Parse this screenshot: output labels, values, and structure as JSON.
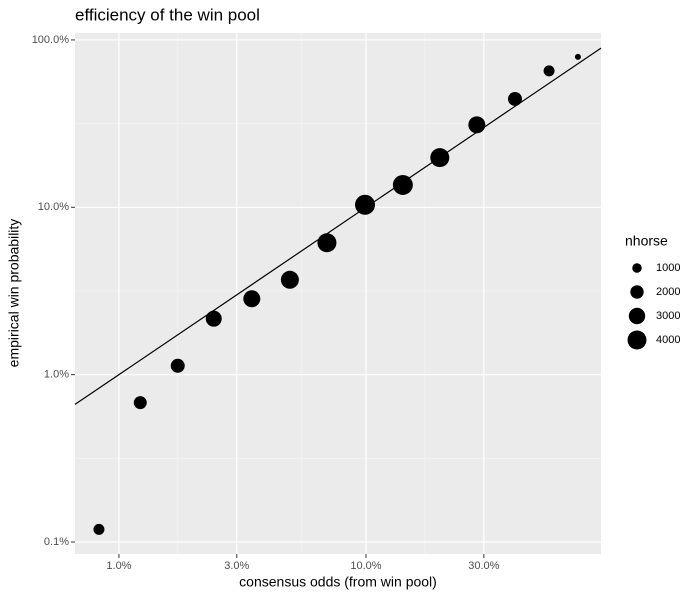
{
  "chart_data": {
    "type": "scatter",
    "title": "efficiency of the win pool",
    "x_label": "consensus odds (from win pool)",
    "y_label": "empirical win probability",
    "x": [
      0.83,
      1.22,
      1.73,
      2.42,
      3.45,
      4.92,
      6.95,
      9.91,
      14.1,
      19.9,
      28.1,
      40.1,
      55.1,
      72.1
    ],
    "y": [
      0.119,
      0.68,
      1.13,
      2.16,
      2.84,
      3.69,
      6.14,
      10.35,
      13.6,
      19.8,
      31.1,
      44.4,
      65.3,
      79.2
    ],
    "sizes": [
      1344,
      1878,
      2178,
      2844,
      3211,
      3600,
      4011,
      4444,
      4444,
      4011,
      3211,
      2178,
      1344,
      400
    ],
    "size_legend": {
      "title": "nhorse",
      "values": [
        1000,
        2000,
        3000,
        4000
      ]
    },
    "color": "#000000",
    "reference_line": "y=x",
    "log_x": true,
    "log_y": true,
    "grid": true,
    "xlim": [
      0.664,
      89.4
    ],
    "ylim": [
      0.0848,
      110
    ],
    "xticks": [
      {
        "value": 1,
        "label": "1.0%"
      },
      {
        "value": 3,
        "label": "3.0%"
      },
      {
        "value": 10,
        "label": "10.0%"
      },
      {
        "value": 30,
        "label": "30.0%"
      }
    ],
    "yticks": [
      {
        "value": 0.1,
        "label": "0.1%"
      },
      {
        "value": 1,
        "label": "1.0%"
      },
      {
        "value": 10,
        "label": "10.0%"
      },
      {
        "value": 100,
        "label": "100.0%"
      }
    ]
  }
}
